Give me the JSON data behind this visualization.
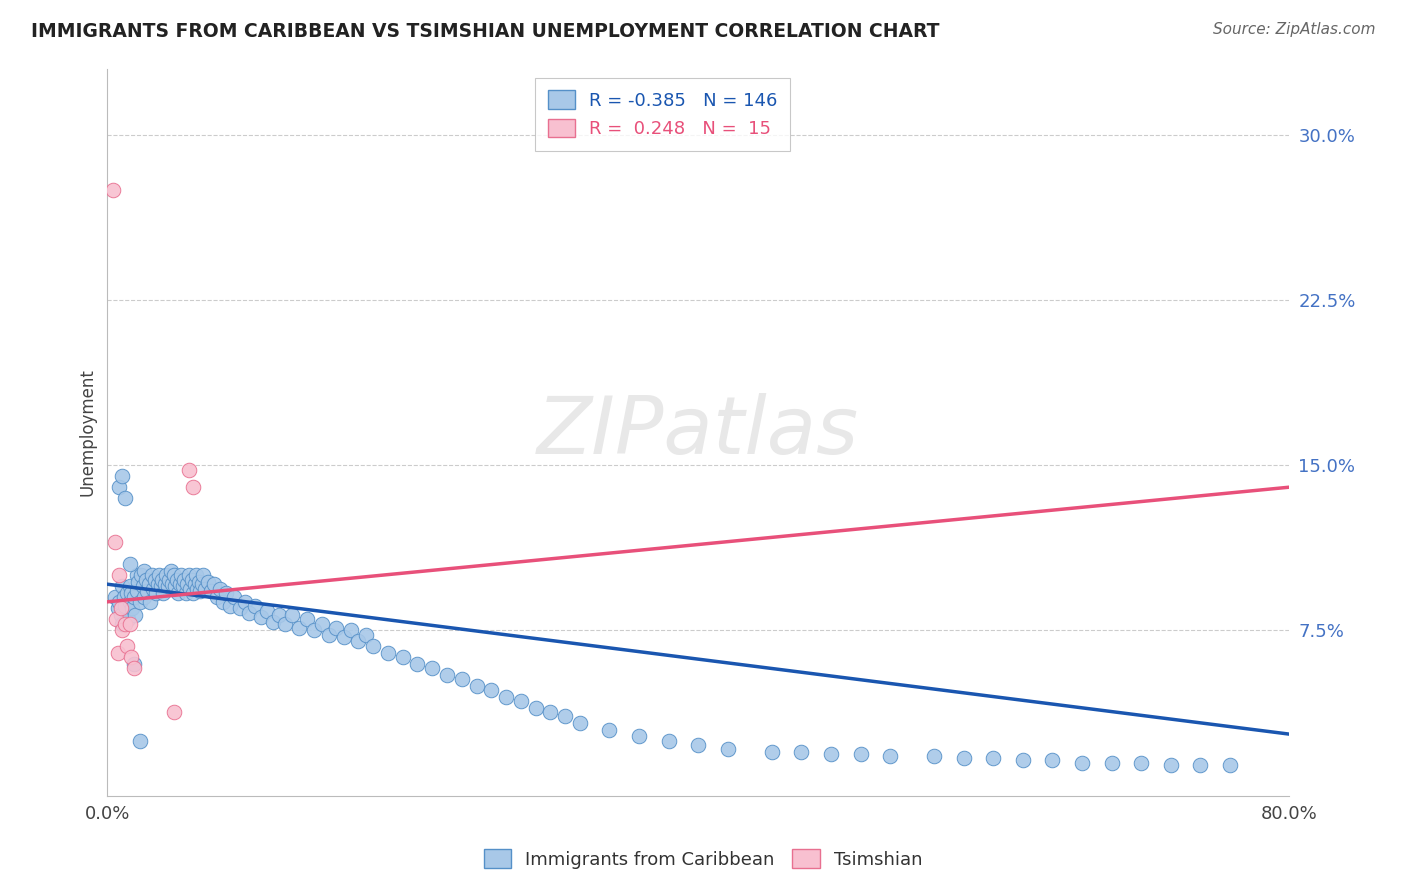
{
  "title": "IMMIGRANTS FROM CARIBBEAN VS TSIMSHIAN UNEMPLOYMENT CORRELATION CHART",
  "source": "Source: ZipAtlas.com",
  "ylabel": "Unemployment",
  "xlim": [
    0.0,
    0.8
  ],
  "ylim": [
    0.0,
    0.33
  ],
  "blue_color": "#a8c8e8",
  "blue_edge_color": "#5590c8",
  "blue_line_color": "#1a56b0",
  "pink_color": "#f8c0d0",
  "pink_edge_color": "#e87090",
  "pink_line_color": "#e8507a",
  "blue_scatter_x": [
    0.005,
    0.007,
    0.008,
    0.009,
    0.01,
    0.01,
    0.011,
    0.012,
    0.013,
    0.014,
    0.015,
    0.015,
    0.016,
    0.017,
    0.018,
    0.019,
    0.02,
    0.02,
    0.021,
    0.022,
    0.023,
    0.024,
    0.025,
    0.025,
    0.026,
    0.027,
    0.028,
    0.029,
    0.03,
    0.031,
    0.032,
    0.033,
    0.034,
    0.035,
    0.036,
    0.037,
    0.038,
    0.039,
    0.04,
    0.041,
    0.042,
    0.043,
    0.044,
    0.045,
    0.046,
    0.047,
    0.048,
    0.049,
    0.05,
    0.051,
    0.052,
    0.053,
    0.054,
    0.055,
    0.056,
    0.057,
    0.058,
    0.059,
    0.06,
    0.061,
    0.062,
    0.063,
    0.064,
    0.065,
    0.066,
    0.068,
    0.07,
    0.072,
    0.074,
    0.076,
    0.078,
    0.08,
    0.083,
    0.086,
    0.09,
    0.093,
    0.096,
    0.1,
    0.104,
    0.108,
    0.112,
    0.116,
    0.12,
    0.125,
    0.13,
    0.135,
    0.14,
    0.145,
    0.15,
    0.155,
    0.16,
    0.165,
    0.17,
    0.175,
    0.18,
    0.19,
    0.2,
    0.21,
    0.22,
    0.23,
    0.24,
    0.25,
    0.26,
    0.27,
    0.28,
    0.29,
    0.3,
    0.31,
    0.32,
    0.34,
    0.36,
    0.38,
    0.4,
    0.42,
    0.45,
    0.47,
    0.49,
    0.51,
    0.53,
    0.56,
    0.58,
    0.6,
    0.62,
    0.64,
    0.66,
    0.68,
    0.7,
    0.72,
    0.74,
    0.76,
    0.008,
    0.01,
    0.012,
    0.015,
    0.018,
    0.022
  ],
  "blue_scatter_y": [
    0.09,
    0.085,
    0.088,
    0.082,
    0.095,
    0.078,
    0.09,
    0.086,
    0.092,
    0.08,
    0.095,
    0.088,
    0.092,
    0.085,
    0.09,
    0.082,
    0.1,
    0.093,
    0.097,
    0.088,
    0.1,
    0.095,
    0.102,
    0.09,
    0.098,
    0.093,
    0.096,
    0.088,
    0.1,
    0.094,
    0.098,
    0.092,
    0.096,
    0.1,
    0.095,
    0.098,
    0.092,
    0.096,
    0.1,
    0.095,
    0.098,
    0.102,
    0.096,
    0.1,
    0.095,
    0.098,
    0.092,
    0.096,
    0.1,
    0.095,
    0.098,
    0.092,
    0.096,
    0.1,
    0.094,
    0.098,
    0.092,
    0.096,
    0.1,
    0.094,
    0.097,
    0.093,
    0.096,
    0.1,
    0.094,
    0.097,
    0.093,
    0.096,
    0.09,
    0.094,
    0.088,
    0.092,
    0.086,
    0.09,
    0.085,
    0.088,
    0.083,
    0.086,
    0.081,
    0.084,
    0.079,
    0.082,
    0.078,
    0.082,
    0.076,
    0.08,
    0.075,
    0.078,
    0.073,
    0.076,
    0.072,
    0.075,
    0.07,
    0.073,
    0.068,
    0.065,
    0.063,
    0.06,
    0.058,
    0.055,
    0.053,
    0.05,
    0.048,
    0.045,
    0.043,
    0.04,
    0.038,
    0.036,
    0.033,
    0.03,
    0.027,
    0.025,
    0.023,
    0.021,
    0.02,
    0.02,
    0.019,
    0.019,
    0.018,
    0.018,
    0.017,
    0.017,
    0.016,
    0.016,
    0.015,
    0.015,
    0.015,
    0.014,
    0.014,
    0.014,
    0.14,
    0.145,
    0.135,
    0.105,
    0.06,
    0.025
  ],
  "pink_scatter_x": [
    0.004,
    0.005,
    0.006,
    0.007,
    0.008,
    0.009,
    0.01,
    0.012,
    0.013,
    0.015,
    0.016,
    0.018,
    0.045,
    0.055,
    0.058
  ],
  "pink_scatter_y": [
    0.275,
    0.115,
    0.08,
    0.065,
    0.1,
    0.085,
    0.075,
    0.078,
    0.068,
    0.078,
    0.063,
    0.058,
    0.038,
    0.148,
    0.14
  ],
  "blue_trend_x": [
    0.0,
    0.8
  ],
  "blue_trend_y": [
    0.096,
    0.028
  ],
  "pink_trend_x": [
    0.0,
    0.8
  ],
  "pink_trend_y": [
    0.088,
    0.14
  ],
  "background_color": "#ffffff",
  "grid_color": "#cccccc"
}
